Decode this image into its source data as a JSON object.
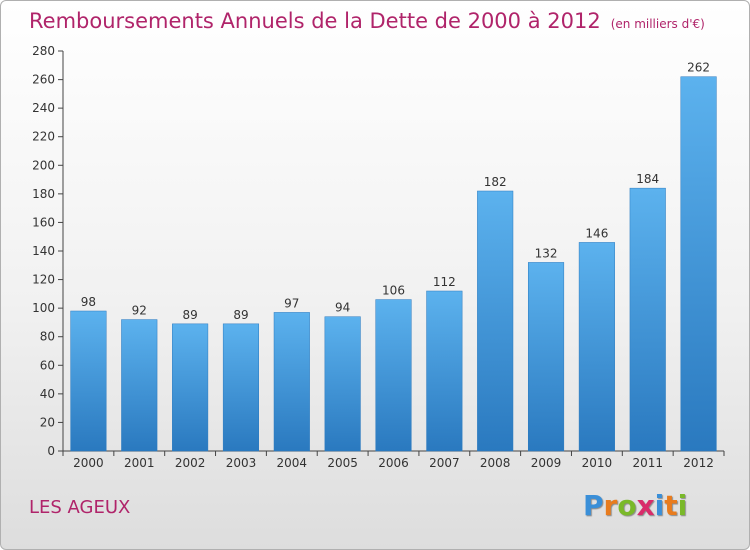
{
  "title": "Remboursements Annuels de la Dette de 2000 à 2012",
  "subtitle": "(en milliers d'€)",
  "location": "LES AGEUX",
  "logo": {
    "letters": [
      "P",
      "r",
      "o",
      "x",
      "i",
      "t",
      "i"
    ],
    "colors": [
      "#3a8fd8",
      "#e87c1e",
      "#7ab929",
      "#d92b6a",
      "#3a8fd8",
      "#e87c1e",
      "#7ab929"
    ]
  },
  "chart_data": {
    "type": "bar",
    "title": "Remboursements Annuels de la Dette de 2000 à 2012",
    "categories": [
      "2000",
      "2001",
      "2002",
      "2003",
      "2004",
      "2005",
      "2006",
      "2007",
      "2008",
      "2009",
      "2010",
      "2011",
      "2012"
    ],
    "values": [
      98,
      92,
      89,
      89,
      97,
      94,
      106,
      112,
      182,
      132,
      146,
      184,
      262
    ],
    "ylim": [
      0,
      280
    ],
    "yticks": [
      0,
      20,
      40,
      60,
      80,
      100,
      120,
      140,
      160,
      180,
      200,
      220,
      240,
      260,
      280
    ],
    "grid": false,
    "bar_color": "#4a9fe0"
  }
}
